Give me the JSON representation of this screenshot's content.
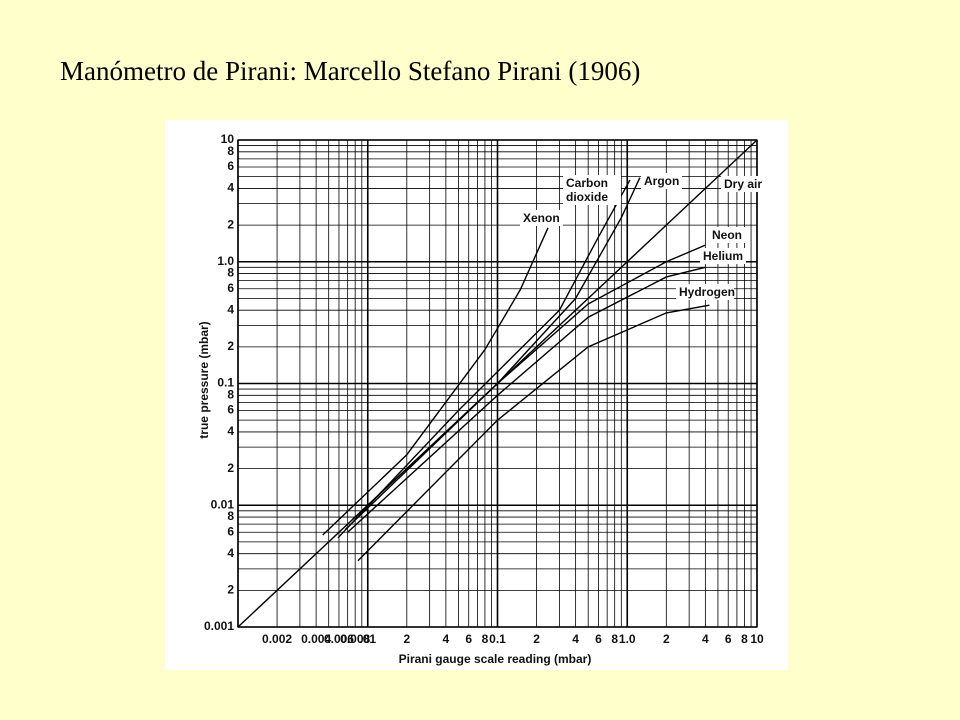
{
  "title": "Manómetro de Pirani: Marcello Stefano Pirani (1906)",
  "chart_data": {
    "type": "line",
    "xlabel": "Pirani gauge scale reading (mbar)",
    "ylabel": "true pressure (mbar)",
    "xscale": "log",
    "yscale": "log",
    "grid": true,
    "color": "#000000",
    "xlim": [
      0.001,
      10
    ],
    "ylim": [
      0.001,
      10
    ],
    "xticks": [
      0.002,
      0.004,
      0.006,
      0.008,
      {
        "value": 0.01,
        "label": ".01"
      },
      {
        "value": 0.02,
        "label": "2"
      },
      {
        "value": 0.04,
        "label": "4"
      },
      {
        "value": 0.06,
        "label": "6"
      },
      {
        "value": 0.08,
        "label": "8"
      },
      0.1,
      {
        "value": 0.2,
        "label": "2"
      },
      {
        "value": 0.4,
        "label": "4"
      },
      {
        "value": 0.6,
        "label": "6"
      },
      {
        "value": 0.8,
        "label": "8"
      },
      {
        "value": 1,
        "label": "1.0"
      },
      2,
      4,
      6,
      8,
      10
    ],
    "yticks": [
      0.001,
      {
        "value": 0.002,
        "label": "2"
      },
      {
        "value": 0.004,
        "label": "4"
      },
      {
        "value": 0.006,
        "label": "6"
      },
      {
        "value": 0.008,
        "label": "8"
      },
      0.01,
      {
        "value": 0.02,
        "label": "2"
      },
      {
        "value": 0.04,
        "label": "4"
      },
      {
        "value": 0.06,
        "label": "6"
      },
      {
        "value": 0.08,
        "label": "8"
      },
      0.1,
      {
        "value": 0.2,
        "label": "2"
      },
      {
        "value": 0.4,
        "label": "4"
      },
      {
        "value": 0.6,
        "label": "6"
      },
      {
        "value": 0.8,
        "label": "8"
      },
      {
        "value": 1,
        "label": "1.0"
      },
      2,
      4,
      6,
      8,
      10
    ],
    "xgrid": [
      0.001,
      0.003,
      0.005,
      0.007,
      0.009,
      0.03,
      0.05,
      0.07,
      0.09,
      0.3,
      0.5,
      0.7,
      0.9,
      3,
      5,
      7,
      9
    ],
    "ygrid": [
      0.003,
      0.005,
      0.007,
      0.009,
      0.03,
      0.05,
      0.07,
      0.09,
      0.3,
      0.5,
      0.7,
      0.9,
      3,
      5,
      7,
      9
    ],
    "series": [
      {
        "name": "Xenon",
        "x": [
          0.0045,
          0.02,
          0.08,
          0.15,
          0.245
        ],
        "values": [
          0.0057,
          0.026,
          0.19,
          0.59,
          1.9
        ]
      },
      {
        "name": "Carbon dioxide",
        "x": [
          0.0059,
          0.05,
          0.3,
          0.6,
          1.05
        ],
        "values": [
          0.0054,
          0.06,
          0.4,
          1.6,
          4.7
        ]
      },
      {
        "name": "Argon",
        "x": [
          0.0067,
          0.1,
          0.4,
          0.9,
          1.25
        ],
        "values": [
          0.0063,
          0.1,
          0.5,
          2.3,
          4.9
        ]
      },
      {
        "name": "Dry air",
        "x": [
          0.001,
          10
        ],
        "values": [
          0.001,
          10
        ]
      },
      {
        "name": "Neon",
        "x": [
          0.0076,
          0.1,
          0.5,
          2,
          4
        ],
        "values": [
          0.0076,
          0.1,
          0.45,
          1.0,
          1.37
        ]
      },
      {
        "name": "Helium",
        "x": [
          0.007,
          0.1,
          0.5,
          2,
          4
        ],
        "values": [
          0.006,
          0.08,
          0.35,
          0.75,
          0.9
        ]
      },
      {
        "name": "Hydrogen",
        "x": [
          0.0084,
          0.1,
          0.5,
          2,
          4.3
        ],
        "values": [
          0.0035,
          0.05,
          0.2,
          0.38,
          0.44
        ]
      }
    ]
  }
}
